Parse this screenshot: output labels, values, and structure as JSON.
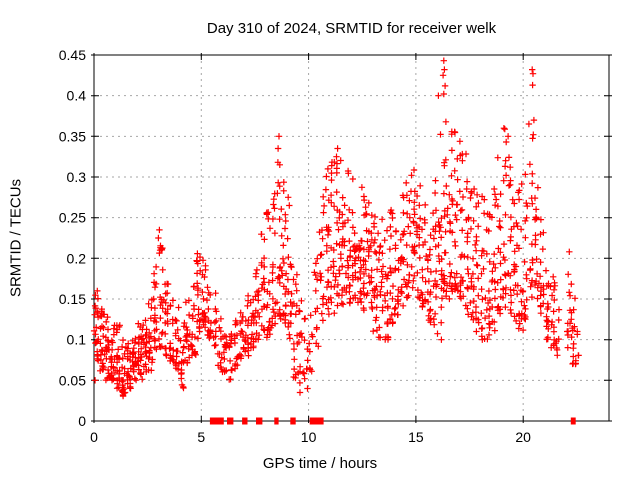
{
  "chart_data": {
    "type": "scatter",
    "title": "Day 310 of 2024, SRMTID for receiver welk",
    "xlabel": "GPS time / hours",
    "ylabel": "SRMTID / TECUs",
    "xlim": [
      0,
      24
    ],
    "ylim": [
      0,
      0.45
    ],
    "xticks": [
      {
        "v": 0,
        "label": "0"
      },
      {
        "v": 5,
        "label": "5"
      },
      {
        "v": 10,
        "label": "10"
      },
      {
        "v": 15,
        "label": "15"
      },
      {
        "v": 20,
        "label": "20"
      }
    ],
    "yticks": [
      {
        "v": 0.0,
        "label": "0"
      },
      {
        "v": 0.05,
        "label": "0.05"
      },
      {
        "v": 0.1,
        "label": "0.1"
      },
      {
        "v": 0.15,
        "label": "0.15"
      },
      {
        "v": 0.2,
        "label": "0.2"
      },
      {
        "v": 0.25,
        "label": "0.25"
      },
      {
        "v": 0.3,
        "label": "0.3"
      },
      {
        "v": 0.35,
        "label": "0.35"
      },
      {
        "v": 0.4,
        "label": "0.4"
      },
      {
        "v": 0.45,
        "label": "0.45"
      }
    ],
    "grid": true,
    "legend": "none",
    "marker": "plus",
    "marker_color": "#ff0000",
    "grid_color": "#a6a6a6",
    "border_color": "#000000",
    "background_color": "#ffffff",
    "point_bins": [
      [
        0.0,
        0.25,
        0.07,
        0.16,
        22
      ],
      [
        0.25,
        0.5,
        0.06,
        0.14,
        22
      ],
      [
        0.5,
        0.75,
        0.05,
        0.13,
        20
      ],
      [
        0.75,
        1.0,
        0.05,
        0.12,
        20
      ],
      [
        1.0,
        1.25,
        0.04,
        0.12,
        20
      ],
      [
        1.25,
        1.5,
        0.03,
        0.1,
        20
      ],
      [
        1.5,
        1.75,
        0.04,
        0.1,
        20
      ],
      [
        1.75,
        2.0,
        0.05,
        0.11,
        20
      ],
      [
        2.0,
        2.25,
        0.05,
        0.12,
        20
      ],
      [
        2.25,
        2.5,
        0.06,
        0.13,
        20
      ],
      [
        2.5,
        2.75,
        0.06,
        0.15,
        18
      ],
      [
        2.75,
        3.0,
        0.08,
        0.19,
        18
      ],
      [
        3.0,
        3.25,
        0.09,
        0.22,
        20
      ],
      [
        3.25,
        3.5,
        0.08,
        0.17,
        18
      ],
      [
        3.5,
        3.75,
        0.07,
        0.15,
        16
      ],
      [
        3.75,
        4.0,
        0.06,
        0.14,
        16
      ],
      [
        4.0,
        4.25,
        0.04,
        0.13,
        16
      ],
      [
        4.25,
        4.5,
        0.07,
        0.15,
        16
      ],
      [
        4.5,
        4.75,
        0.08,
        0.18,
        18
      ],
      [
        4.75,
        5.0,
        0.1,
        0.21,
        20
      ],
      [
        5.0,
        5.25,
        0.11,
        0.2,
        18
      ],
      [
        5.25,
        5.5,
        0.1,
        0.19,
        16
      ],
      [
        5.5,
        5.75,
        0.09,
        0.16,
        10
      ],
      [
        5.75,
        6.0,
        0.06,
        0.13,
        12
      ],
      [
        6.0,
        6.25,
        0.06,
        0.12,
        14
      ],
      [
        6.25,
        6.5,
        0.05,
        0.11,
        12
      ],
      [
        6.5,
        6.75,
        0.06,
        0.13,
        14
      ],
      [
        6.75,
        7.0,
        0.07,
        0.15,
        14
      ],
      [
        7.0,
        7.25,
        0.08,
        0.16,
        16
      ],
      [
        7.25,
        7.5,
        0.09,
        0.17,
        16
      ],
      [
        7.5,
        7.75,
        0.1,
        0.19,
        18
      ],
      [
        7.75,
        8.0,
        0.11,
        0.24,
        18
      ],
      [
        8.0,
        8.25,
        0.1,
        0.26,
        20
      ],
      [
        8.25,
        8.5,
        0.1,
        0.28,
        18
      ],
      [
        8.5,
        8.75,
        0.12,
        0.33,
        20
      ],
      [
        8.75,
        9.0,
        0.12,
        0.3,
        20
      ],
      [
        9.0,
        9.25,
        0.1,
        0.27,
        18
      ],
      [
        9.25,
        9.5,
        0.05,
        0.18,
        16
      ],
      [
        9.5,
        9.75,
        0.04,
        0.15,
        12
      ],
      [
        9.75,
        10.0,
        0.05,
        0.13,
        10
      ],
      [
        10.0,
        10.25,
        0.06,
        0.14,
        8
      ],
      [
        10.25,
        10.5,
        0.09,
        0.2,
        12
      ],
      [
        10.5,
        10.75,
        0.12,
        0.28,
        16
      ],
      [
        10.75,
        11.0,
        0.13,
        0.31,
        18
      ],
      [
        11.0,
        11.25,
        0.13,
        0.32,
        20
      ],
      [
        11.25,
        11.5,
        0.14,
        0.33,
        20
      ],
      [
        11.5,
        11.75,
        0.14,
        0.31,
        20
      ],
      [
        11.75,
        12.0,
        0.14,
        0.31,
        20
      ],
      [
        12.0,
        12.25,
        0.15,
        0.3,
        20
      ],
      [
        12.25,
        12.5,
        0.14,
        0.29,
        20
      ],
      [
        12.5,
        12.75,
        0.13,
        0.28,
        20
      ],
      [
        12.75,
        13.0,
        0.13,
        0.28,
        20
      ],
      [
        13.0,
        13.25,
        0.11,
        0.26,
        20
      ],
      [
        13.25,
        13.5,
        0.1,
        0.25,
        18
      ],
      [
        13.5,
        13.75,
        0.1,
        0.24,
        18
      ],
      [
        13.75,
        14.0,
        0.12,
        0.26,
        18
      ],
      [
        14.0,
        14.25,
        0.13,
        0.27,
        18
      ],
      [
        14.25,
        14.5,
        0.14,
        0.28,
        18
      ],
      [
        14.5,
        14.75,
        0.15,
        0.3,
        18
      ],
      [
        14.75,
        15.0,
        0.16,
        0.31,
        18
      ],
      [
        15.0,
        15.25,
        0.15,
        0.29,
        18
      ],
      [
        15.25,
        15.5,
        0.14,
        0.27,
        18
      ],
      [
        15.5,
        15.75,
        0.12,
        0.26,
        18
      ],
      [
        15.75,
        16.0,
        0.1,
        0.3,
        18
      ],
      [
        16.0,
        16.25,
        0.1,
        0.38,
        20
      ],
      [
        16.25,
        16.5,
        0.15,
        0.38,
        22
      ],
      [
        16.5,
        16.75,
        0.15,
        0.37,
        20
      ],
      [
        16.75,
        17.0,
        0.16,
        0.37,
        20
      ],
      [
        17.0,
        17.25,
        0.15,
        0.35,
        20
      ],
      [
        17.25,
        17.5,
        0.13,
        0.33,
        18
      ],
      [
        17.5,
        17.75,
        0.12,
        0.31,
        18
      ],
      [
        17.75,
        18.0,
        0.11,
        0.3,
        18
      ],
      [
        18.0,
        18.25,
        0.1,
        0.28,
        18
      ],
      [
        18.25,
        18.5,
        0.1,
        0.26,
        18
      ],
      [
        18.5,
        18.75,
        0.11,
        0.29,
        18
      ],
      [
        18.75,
        19.0,
        0.13,
        0.33,
        18
      ],
      [
        19.0,
        19.25,
        0.14,
        0.36,
        18
      ],
      [
        19.25,
        19.5,
        0.13,
        0.35,
        18
      ],
      [
        19.5,
        19.75,
        0.12,
        0.33,
        18
      ],
      [
        19.75,
        20.0,
        0.11,
        0.3,
        18
      ],
      [
        20.0,
        20.25,
        0.12,
        0.31,
        16
      ],
      [
        20.25,
        20.5,
        0.15,
        0.37,
        16
      ],
      [
        20.5,
        20.75,
        0.15,
        0.3,
        16
      ],
      [
        20.75,
        21.0,
        0.13,
        0.25,
        16
      ],
      [
        21.0,
        21.25,
        0.1,
        0.2,
        16
      ],
      [
        21.25,
        21.5,
        0.09,
        0.18,
        16
      ],
      [
        21.5,
        21.75,
        0.08,
        0.15,
        8
      ],
      [
        22.0,
        22.25,
        0.09,
        0.21,
        12
      ],
      [
        22.25,
        22.5,
        0.07,
        0.16,
        16
      ],
      [
        22.5,
        22.6,
        0.08,
        0.13,
        4
      ]
    ],
    "outlier_points": [
      [
        3.05,
        0.235
      ],
      [
        3.0,
        0.225
      ],
      [
        3.08,
        0.21
      ],
      [
        8.62,
        0.35
      ],
      [
        8.58,
        0.335
      ],
      [
        8.66,
        0.315
      ],
      [
        9.05,
        0.275
      ],
      [
        9.1,
        0.265
      ],
      [
        10.9,
        0.31
      ],
      [
        11.35,
        0.335
      ],
      [
        11.3,
        0.325
      ],
      [
        16.3,
        0.443
      ],
      [
        16.33,
        0.432
      ],
      [
        16.27,
        0.425
      ],
      [
        16.36,
        0.412
      ],
      [
        16.3,
        0.402
      ],
      [
        16.05,
        0.4
      ],
      [
        19.1,
        0.36
      ],
      [
        19.3,
        0.35
      ],
      [
        20.42,
        0.432
      ],
      [
        20.46,
        0.427
      ],
      [
        20.44,
        0.413
      ],
      [
        20.5,
        0.37
      ],
      [
        20.47,
        0.352
      ],
      [
        1.35,
        0.032
      ],
      [
        1.45,
        0.035
      ],
      [
        4.15,
        0.042
      ],
      [
        9.6,
        0.035
      ],
      [
        9.95,
        0.04
      ],
      [
        22.15,
        0.208
      ],
      [
        0.05,
        0.05
      ]
    ],
    "axis_gap_markers": [
      [
        5.4,
        6.05
      ],
      [
        6.2,
        6.5
      ],
      [
        6.9,
        7.15
      ],
      [
        7.55,
        7.85
      ],
      [
        8.4,
        8.6
      ],
      [
        9.15,
        9.4
      ],
      [
        10.05,
        10.7
      ],
      [
        22.22,
        22.45
      ]
    ]
  }
}
